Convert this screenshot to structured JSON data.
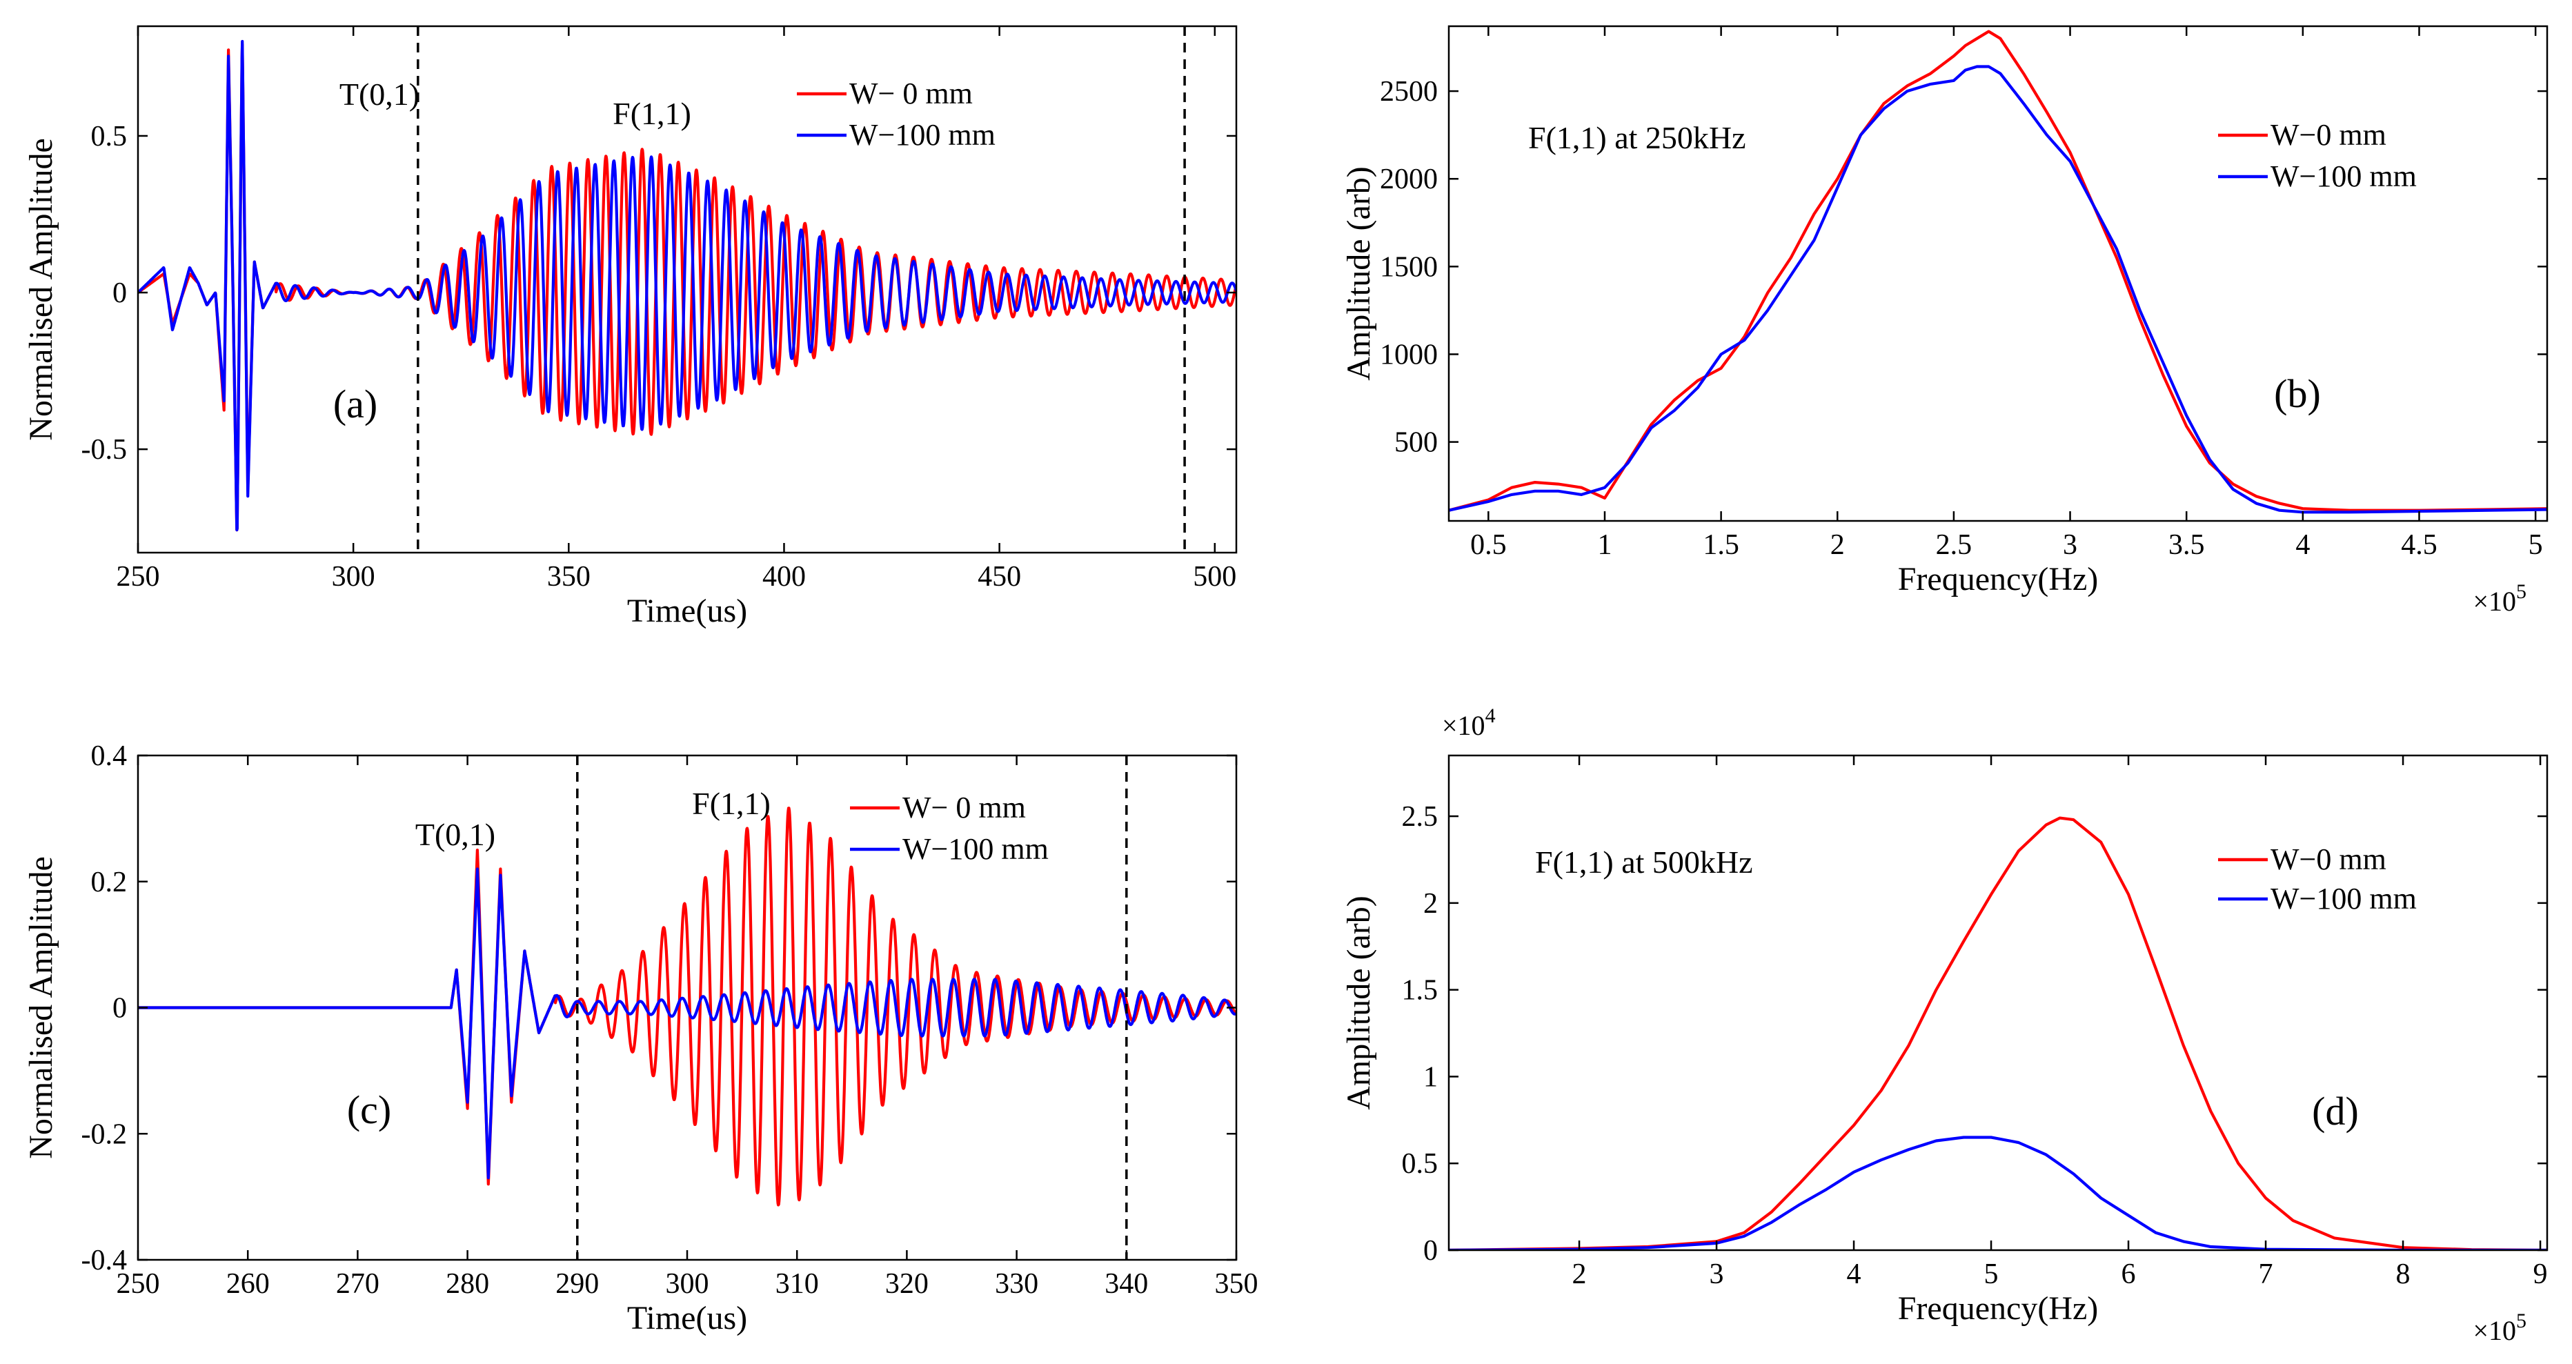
{
  "figure": {
    "series_colors": {
      "w0": "#ff0000",
      "w100": "#0000ff"
    }
  },
  "chart_data": [
    {
      "id": "a",
      "type": "line",
      "panel_label": "(a)",
      "title": "",
      "xlabel": "Time(us)",
      "ylabel": "Normalised Amplitude",
      "xlim": [
        250,
        505
      ],
      "ylim": [
        -0.83,
        0.85
      ],
      "xticks": [
        250,
        300,
        350,
        400,
        450,
        500
      ],
      "xtick_labels": [
        "250",
        "300",
        "350",
        "400",
        "450",
        "500"
      ],
      "yticks": [
        -0.5,
        0,
        0.5
      ],
      "ytick_labels": [
        "-0.5",
        "0",
        "0.5"
      ],
      "grid": false,
      "legend": {
        "position": "top-right",
        "entries": [
          "W− 0 mm",
          "W−100 mm"
        ]
      },
      "annotations": [
        {
          "text": "T(0,1)",
          "x": 272,
          "y": 0.68
        },
        {
          "text": "F(1,1)",
          "x": 366,
          "y": 0.62
        }
      ],
      "vlines": [
        315,
        493
      ],
      "series": [
        {
          "name": "W− 0 mm",
          "color": "#ff0000",
          "key": "w0",
          "samples": [
            [
              250,
              0
            ],
            [
              256,
              0.06
            ],
            [
              258,
              -0.1
            ],
            [
              262,
              0.06
            ],
            [
              264,
              0.03
            ],
            [
              266,
              -0.04
            ],
            [
              268,
              0
            ],
            [
              270,
              -0.38
            ],
            [
              271,
              0.78
            ],
            [
              272,
              0.05
            ],
            [
              273,
              -0.8
            ],
            [
              274.2,
              0.82
            ],
            [
              275.5,
              -0.63
            ],
            [
              277,
              0.1
            ],
            [
              279,
              -0.05
            ],
            [
              282,
              0.03
            ],
            [
              300,
              0
            ],
            [
              315,
              0.02
            ],
            [
              330,
              0.2
            ],
            [
              345,
              0.4
            ],
            [
              368,
              0.46
            ],
            [
              385,
              0.36
            ],
            [
              400,
              0.25
            ],
            [
              420,
              0.13
            ],
            [
              450,
              0.08
            ],
            [
              480,
              0.06
            ],
            [
              505,
              0.04
            ]
          ],
          "period_us": 4.2,
          "phase": 0
        },
        {
          "name": "W−100 mm",
          "color": "#0000ff",
          "key": "w100",
          "samples": [
            [
              250,
              0
            ],
            [
              256,
              0.08
            ],
            [
              258,
              -0.12
            ],
            [
              262,
              0.08
            ],
            [
              264,
              0.03
            ],
            [
              266,
              -0.04
            ],
            [
              268,
              0
            ],
            [
              270,
              -0.35
            ],
            [
              271,
              0.76
            ],
            [
              272,
              0.05
            ],
            [
              273,
              -0.8
            ],
            [
              274.2,
              0.83
            ],
            [
              275.5,
              -0.65
            ],
            [
              277,
              0.1
            ],
            [
              279,
              -0.05
            ],
            [
              282,
              0.03
            ],
            [
              300,
              0
            ],
            [
              315,
              0.02
            ],
            [
              330,
              0.18
            ],
            [
              345,
              0.38
            ],
            [
              368,
              0.44
            ],
            [
              385,
              0.34
            ],
            [
              400,
              0.22
            ],
            [
              420,
              0.12
            ],
            [
              450,
              0.06
            ],
            [
              480,
              0.04
            ],
            [
              505,
              0.03
            ]
          ],
          "period_us": 4.35,
          "phase": 1.3
        }
      ]
    },
    {
      "id": "b",
      "type": "line",
      "panel_label": "(b)",
      "title": "",
      "xlabel": "Frequency(Hz)",
      "ylabel": "Amplitude (arb)",
      "x_multiplier": "×10",
      "x_multiplier_exp": "5",
      "xlim": [
        0.33,
        5.05
      ],
      "ylim": [
        50,
        2870
      ],
      "xticks": [
        0.5,
        1,
        1.5,
        2,
        2.5,
        3,
        3.5,
        4,
        4.5,
        5
      ],
      "xtick_labels": [
        "0.5",
        "1",
        "1.5",
        "2",
        "2.5",
        "3",
        "3.5",
        "4",
        "4.5",
        "5"
      ],
      "yticks": [
        500,
        1000,
        1500,
        2000,
        2500
      ],
      "ytick_labels": [
        "500",
        "1000",
        "1500",
        "2000",
        "2500"
      ],
      "grid": false,
      "legend": {
        "position": "top-right",
        "entries": [
          "W−0 mm",
          "W−100 mm"
        ]
      },
      "annotations": [
        {
          "text": "F(1,1) at 250kHz",
          "x": 0.7,
          "y": 2330
        }
      ],
      "series": [
        {
          "name": "W−0 mm",
          "color": "#ff0000",
          "x": [
            0.33,
            0.5,
            0.6,
            0.7,
            0.8,
            0.9,
            1.0,
            1.1,
            1.2,
            1.3,
            1.4,
            1.5,
            1.6,
            1.7,
            1.8,
            1.9,
            2.0,
            2.1,
            2.2,
            2.3,
            2.4,
            2.5,
            2.55,
            2.6,
            2.65,
            2.7,
            2.8,
            2.9,
            3.0,
            3.1,
            3.2,
            3.3,
            3.4,
            3.5,
            3.6,
            3.7,
            3.8,
            3.9,
            4.0,
            4.2,
            4.5,
            4.8,
            5.05
          ],
          "y": [
            110,
            170,
            240,
            270,
            260,
            240,
            180,
            390,
            600,
            740,
            850,
            920,
            1100,
            1350,
            1550,
            1800,
            2000,
            2250,
            2430,
            2530,
            2600,
            2700,
            2760,
            2800,
            2840,
            2800,
            2600,
            2380,
            2150,
            1850,
            1550,
            1200,
            880,
            590,
            380,
            260,
            190,
            150,
            120,
            110,
            110,
            115,
            120
          ]
        },
        {
          "name": "W−100 mm",
          "color": "#0000ff",
          "x": [
            0.33,
            0.5,
            0.6,
            0.7,
            0.8,
            0.9,
            1.0,
            1.1,
            1.2,
            1.3,
            1.4,
            1.5,
            1.6,
            1.7,
            1.8,
            1.9,
            2.0,
            2.1,
            2.2,
            2.3,
            2.4,
            2.5,
            2.55,
            2.6,
            2.65,
            2.7,
            2.8,
            2.9,
            3.0,
            3.1,
            3.2,
            3.3,
            3.4,
            3.5,
            3.6,
            3.7,
            3.8,
            3.9,
            4.0,
            4.2,
            4.5,
            4.8,
            5.05
          ],
          "y": [
            110,
            160,
            200,
            220,
            220,
            200,
            240,
            380,
            580,
            680,
            810,
            1000,
            1080,
            1250,
            1450,
            1650,
            1950,
            2250,
            2400,
            2500,
            2540,
            2560,
            2620,
            2640,
            2640,
            2600,
            2430,
            2250,
            2100,
            1850,
            1600,
            1250,
            950,
            650,
            400,
            230,
            150,
            110,
            100,
            100,
            105,
            110,
            115
          ]
        }
      ]
    },
    {
      "id": "c",
      "type": "line",
      "panel_label": "(c)",
      "title": "",
      "xlabel": "Time(us)",
      "ylabel": "Normalised Amplitude",
      "xlim": [
        250,
        350
      ],
      "ylim": [
        -0.4,
        0.4
      ],
      "xticks": [
        250,
        260,
        270,
        280,
        290,
        300,
        310,
        320,
        330,
        340,
        350
      ],
      "xtick_labels": [
        "250",
        "260",
        "270",
        "280",
        "290",
        "300",
        "310",
        "320",
        "330",
        "340",
        "350"
      ],
      "yticks": [
        -0.4,
        -0.2,
        0,
        0.2,
        0.4
      ],
      "ytick_labels": [
        "-0.4",
        "-0.2",
        "0",
        "0.2",
        "0.4"
      ],
      "grid": false,
      "legend": {
        "position": "top-right",
        "entries": [
          "W− 0 mm",
          "W−100 mm"
        ]
      },
      "annotations": [
        {
          "text": "T(0,1)",
          "x": 280,
          "y": 0.26
        },
        {
          "text": "F(1,1)",
          "x": 304,
          "y": 0.305
        }
      ],
      "vlines": [
        290,
        340
      ],
      "series": [
        {
          "name": "W− 0 mm",
          "color": "#ff0000",
          "key": "w0",
          "samples": [
            [
              250,
              0
            ],
            [
              278.5,
              0
            ],
            [
              279,
              0.06
            ],
            [
              280,
              -0.16
            ],
            [
              280.9,
              0.25
            ],
            [
              281.9,
              -0.28
            ],
            [
              283,
              0.22
            ],
            [
              284,
              -0.15
            ],
            [
              285.2,
              0.09
            ],
            [
              286.5,
              -0.04
            ],
            [
              288,
              0.02
            ],
            [
              290,
              0.01
            ],
            [
              295,
              0.07
            ],
            [
              300,
              0.17
            ],
            [
              305,
              0.28
            ],
            [
              309,
              0.32
            ],
            [
              313,
              0.27
            ],
            [
              318,
              0.15
            ],
            [
              325,
              0.06
            ],
            [
              335,
              0.03
            ],
            [
              345,
              0.015
            ],
            [
              350,
              0.01
            ]
          ],
          "period_us": 1.9,
          "phase": 0.4
        },
        {
          "name": "W−100 mm",
          "color": "#0000ff",
          "key": "w100",
          "samples": [
            [
              250,
              0
            ],
            [
              278.5,
              0
            ],
            [
              279,
              0.06
            ],
            [
              280,
              -0.15
            ],
            [
              280.9,
              0.22
            ],
            [
              281.9,
              -0.27
            ],
            [
              283,
              0.21
            ],
            [
              284,
              -0.14
            ],
            [
              285.2,
              0.09
            ],
            [
              286.5,
              -0.04
            ],
            [
              288,
              0.02
            ],
            [
              290,
              0.01
            ],
            [
              296,
              0.01
            ],
            [
              303,
              0.02
            ],
            [
              312,
              0.035
            ],
            [
              320,
              0.045
            ],
            [
              328,
              0.045
            ],
            [
              335,
              0.035
            ],
            [
              345,
              0.02
            ],
            [
              350,
              0.01
            ]
          ],
          "period_us": 1.9,
          "phase": 1.1
        }
      ]
    },
    {
      "id": "d",
      "type": "line",
      "panel_label": "(d)",
      "title": "",
      "xlabel": "Frequency(Hz)",
      "ylabel": "Amplitude (arb)",
      "x_multiplier": "×10",
      "x_multiplier_exp": "5",
      "y_multiplier": "×10",
      "y_multiplier_exp": "4",
      "xlim": [
        1.05,
        9.05
      ],
      "ylim": [
        0,
        2.85
      ],
      "xticks": [
        2,
        3,
        4,
        5,
        6,
        7,
        8,
        9
      ],
      "xtick_labels": [
        "2",
        "3",
        "4",
        "5",
        "6",
        "7",
        "8",
        "9"
      ],
      "yticks": [
        0,
        0.5,
        1,
        1.5,
        2,
        2.5
      ],
      "ytick_labels": [
        "0",
        "0.5",
        "1",
        "1.5",
        "2",
        "2.5"
      ],
      "grid": false,
      "legend": {
        "position": "top-right",
        "entries": [
          "W−0 mm",
          "W−100 mm"
        ]
      },
      "annotations": [
        {
          "text": "F(1,1) at 500kHz",
          "x": 1.9,
          "y": 2.2
        }
      ],
      "series": [
        {
          "name": "W−0 mm",
          "color": "#ff0000",
          "x": [
            1.05,
            2,
            2.5,
            3,
            3.2,
            3.4,
            3.6,
            3.8,
            4,
            4.2,
            4.4,
            4.6,
            4.8,
            5,
            5.2,
            5.4,
            5.5,
            5.6,
            5.8,
            6,
            6.2,
            6.4,
            6.6,
            6.8,
            7,
            7.2,
            7.5,
            8,
            8.5,
            9.05
          ],
          "y": [
            0,
            0.01,
            0.02,
            0.05,
            0.1,
            0.22,
            0.38,
            0.55,
            0.72,
            0.92,
            1.18,
            1.5,
            1.78,
            2.05,
            2.3,
            2.45,
            2.49,
            2.48,
            2.35,
            2.05,
            1.62,
            1.18,
            0.8,
            0.5,
            0.3,
            0.17,
            0.07,
            0.015,
            0.003,
            0
          ]
        },
        {
          "name": "W−100 mm",
          "color": "#0000ff",
          "x": [
            1.05,
            2,
            2.5,
            3,
            3.2,
            3.4,
            3.6,
            3.8,
            4,
            4.2,
            4.4,
            4.6,
            4.8,
            5,
            5.2,
            5.4,
            5.6,
            5.8,
            6,
            6.2,
            6.4,
            6.6,
            7,
            8,
            9.05
          ],
          "y": [
            0,
            0.005,
            0.015,
            0.04,
            0.08,
            0.16,
            0.26,
            0.35,
            0.45,
            0.52,
            0.58,
            0.63,
            0.65,
            0.65,
            0.62,
            0.55,
            0.44,
            0.3,
            0.2,
            0.1,
            0.05,
            0.02,
            0.005,
            0,
            0
          ]
        }
      ]
    }
  ]
}
